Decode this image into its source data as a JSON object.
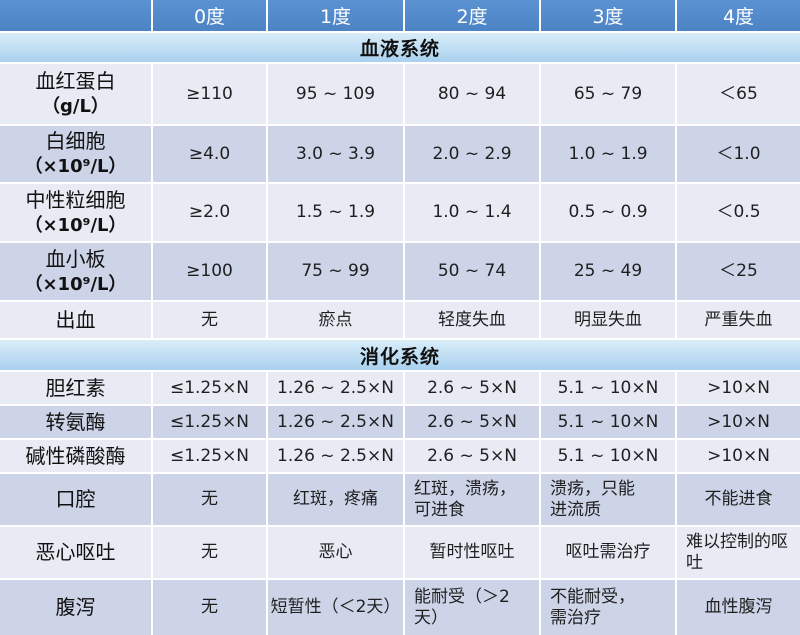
{
  "header": {
    "grades": [
      "0度",
      "1度",
      "2度",
      "3度",
      "4度"
    ]
  },
  "sections": [
    {
      "title": "血液系统",
      "rows": [
        {
          "label": [
            "血红蛋白",
            "（g/L）"
          ],
          "grades": [
            "≥110",
            "95 ~ 109",
            "80 ~ 94",
            "65 ~ 79",
            "＜65"
          ]
        },
        {
          "label": [
            "白细胞",
            "（×10⁹/L）"
          ],
          "grades": [
            "≥4.0",
            "3.0 ~ 3.9",
            "2.0 ~ 2.9",
            "1.0 ~ 1.9",
            "＜1.0"
          ]
        },
        {
          "label": [
            "中性粒细胞",
            "（×10⁹/L）"
          ],
          "grades": [
            "≥2.0",
            "1.5 ~ 1.9",
            "1.0 ~ 1.4",
            "0.5 ~ 0.9",
            "＜0.5"
          ]
        },
        {
          "label": [
            "血小板",
            "（×10⁹/L）"
          ],
          "grades": [
            "≥100",
            "75 ~ 99",
            "50 ~ 74",
            "25 ~ 49",
            "＜25"
          ]
        },
        {
          "label": [
            "出血"
          ],
          "grades": [
            "无",
            "瘀点",
            "轻度失血",
            "明显失血",
            "严重失血"
          ]
        }
      ]
    },
    {
      "title": "消化系统",
      "rows": [
        {
          "label": [
            "胆红素"
          ],
          "grades": [
            "≤1.25×N",
            "1.26 ~ 2.5×N",
            "2.6 ~ 5×N",
            "5.1 ~ 10×N",
            ">10×N"
          ]
        },
        {
          "label": [
            "转氨酶"
          ],
          "grades": [
            "≤1.25×N",
            "1.26 ~ 2.5×N",
            "2.6 ~ 5×N",
            "5.1 ~ 10×N",
            ">10×N"
          ]
        },
        {
          "label": [
            "碱性磷酸酶"
          ],
          "grades": [
            "≤1.25×N",
            "1.26 ~ 2.5×N",
            "2.6 ~ 5×N",
            "5.1 ~ 10×N",
            ">10×N"
          ]
        },
        {
          "label": [
            "口腔"
          ],
          "grades": [
            "无",
            "红斑，疼痛",
            [
              "红斑，溃疡，",
              "可进食"
            ],
            [
              "溃疡，只能",
              "进流质"
            ],
            "不能进食"
          ]
        },
        {
          "label": [
            "恶心呕吐"
          ],
          "grades": [
            "无",
            "恶心",
            "暂时性呕吐",
            "呕吐需治疗",
            [
              "难以控制的呕",
              "吐"
            ]
          ]
        },
        {
          "label": [
            "腹泻"
          ],
          "grades": [
            "无",
            "短暂性（＜2天）",
            [
              "能耐受（＞2",
              "天）"
            ],
            [
              "不能耐受，",
              "需治疗"
            ],
            "血性腹泻"
          ]
        }
      ]
    }
  ]
}
